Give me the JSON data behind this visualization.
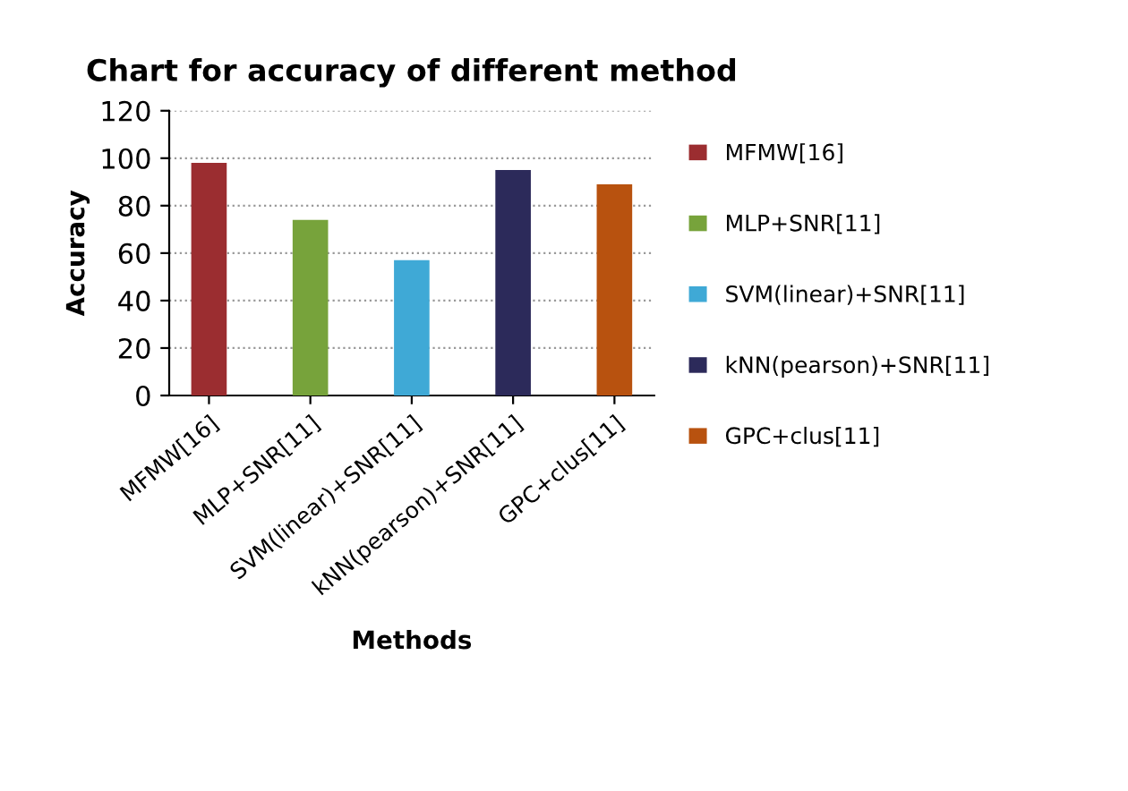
{
  "chart_data": {
    "type": "bar",
    "title": "Chart for accuracy of different method",
    "xlabel": "Methods",
    "ylabel": "Accuracy",
    "categories": [
      "MFMW[16]",
      "MLP+SNR[11]",
      "SVM(linear)+SNR[11]",
      "kNN(pearson)+SNR[11]",
      "GPC+clus[11]"
    ],
    "series": [
      {
        "name": "MFMW[16]",
        "color": "#9b2d30",
        "values": [
          98,
          null,
          null,
          null,
          null
        ]
      },
      {
        "name": "MLP+SNR[11]",
        "color": "#77a33b",
        "values": [
          null,
          74,
          null,
          null,
          null
        ]
      },
      {
        "name": "SVM(linear)+SNR[11]",
        "color": "#3fa9d6",
        "values": [
          null,
          null,
          57,
          null,
          null
        ]
      },
      {
        "name": "kNN(pearson)+SNR[11]",
        "color": "#2c2a5a",
        "values": [
          null,
          null,
          null,
          95,
          null
        ]
      },
      {
        "name": "GPC+clus[11]",
        "color": "#b8520f",
        "values": [
          null,
          null,
          null,
          null,
          89
        ]
      }
    ],
    "ylim": [
      0,
      120
    ],
    "yticks": [
      0,
      20,
      40,
      60,
      80,
      100,
      120
    ],
    "grid": "y",
    "legend": "right"
  }
}
